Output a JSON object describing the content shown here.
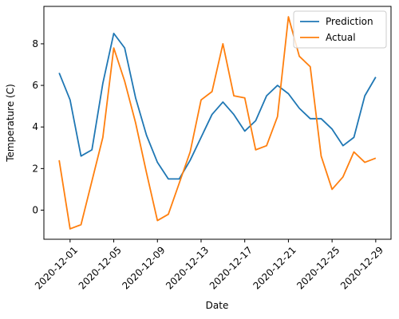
{
  "chart_data": {
    "type": "line",
    "title": "",
    "xlabel": "Date",
    "ylabel": "Temperature (C)",
    "x": [
      "2020-11-30",
      "2020-12-01",
      "2020-12-02",
      "2020-12-03",
      "2020-12-04",
      "2020-12-05",
      "2020-12-06",
      "2020-12-07",
      "2020-12-08",
      "2020-12-09",
      "2020-12-10",
      "2020-12-11",
      "2020-12-12",
      "2020-12-13",
      "2020-12-14",
      "2020-12-15",
      "2020-12-16",
      "2020-12-17",
      "2020-12-18",
      "2020-12-19",
      "2020-12-20",
      "2020-12-21",
      "2020-12-22",
      "2020-12-23",
      "2020-12-24",
      "2020-12-25",
      "2020-12-26",
      "2020-12-27",
      "2020-12-28",
      "2020-12-29"
    ],
    "xticks": [
      "2020-12-01",
      "2020-12-05",
      "2020-12-09",
      "2020-12-13",
      "2020-12-17",
      "2020-12-21",
      "2020-12-25",
      "2020-12-29"
    ],
    "yticks": [
      0,
      2,
      4,
      6,
      8
    ],
    "xlim": [
      "2020-11-28T14:24",
      "2020-12-30T09:36"
    ],
    "ylim": [
      -1.4,
      9.8
    ],
    "grid": false,
    "legend_position": "top-right",
    "series": [
      {
        "name": "Prediction",
        "color": "#1f77b4",
        "values": [
          6.6,
          5.3,
          2.6,
          2.9,
          6.1,
          8.5,
          7.8,
          5.4,
          3.6,
          2.3,
          1.5,
          1.5,
          2.4,
          3.5,
          4.6,
          5.2,
          4.6,
          3.8,
          4.3,
          5.5,
          6.0,
          5.6,
          4.9,
          4.4,
          4.4,
          3.9,
          3.1,
          3.5,
          5.5,
          6.4
        ]
      },
      {
        "name": "Actual",
        "color": "#ff7f0e",
        "values": [
          2.4,
          -0.9,
          -0.7,
          1.4,
          3.5,
          7.8,
          6.2,
          4.2,
          1.8,
          -0.5,
          -0.2,
          1.3,
          2.8,
          5.3,
          5.7,
          8.0,
          5.5,
          5.4,
          2.9,
          3.1,
          4.5,
          9.3,
          7.4,
          6.9,
          2.6,
          1.0,
          1.6,
          2.8,
          2.3,
          2.5
        ]
      }
    ]
  }
}
